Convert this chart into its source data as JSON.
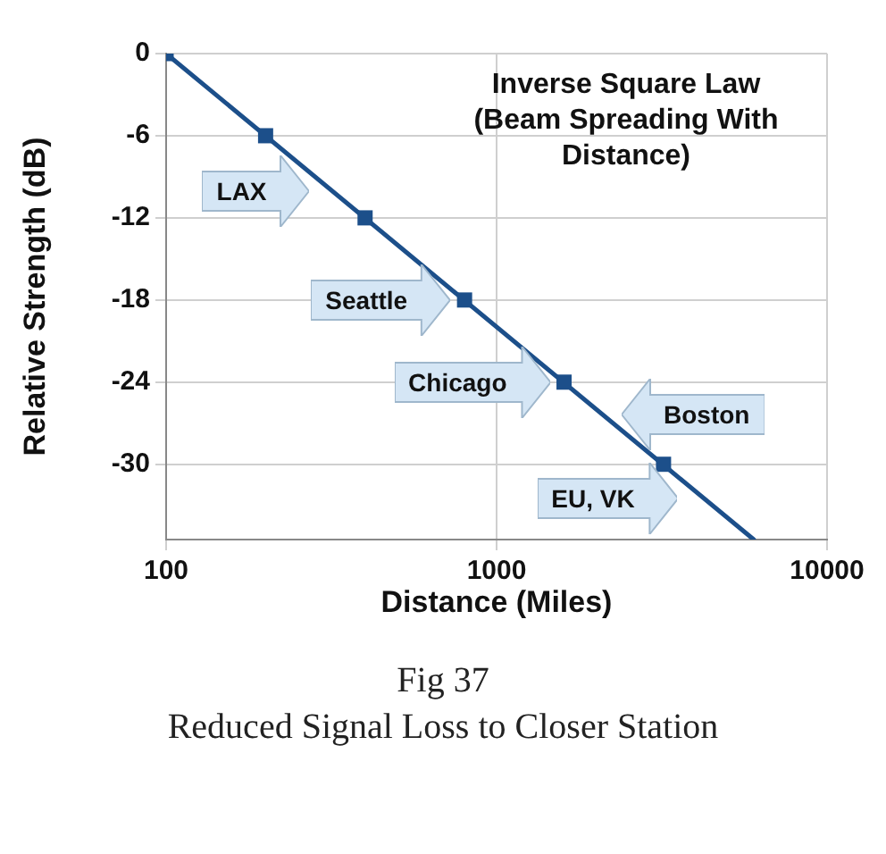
{
  "chart_data": {
    "type": "line",
    "title": "Inverse Square Law (Beam Spreading With Distance)",
    "xlabel": "Distance (Miles)",
    "ylabel": "Relative Strength (dB)",
    "series": [
      {
        "type": "line",
        "marker": "none",
        "color": "#1c4f8a",
        "x": [
          100,
          6000
        ],
        "values": [
          0,
          -35.5
        ]
      },
      {
        "type": "scatter",
        "marker": "square",
        "color": "#1c4f8a",
        "x": [
          100,
          200,
          400,
          800,
          1600,
          3200
        ],
        "values": [
          0,
          -6,
          -12,
          -18,
          -24,
          -30
        ]
      }
    ],
    "log": "x",
    "xlim": [
      100,
      10000
    ],
    "xticks": [
      100,
      1000,
      10000
    ],
    "ylim": [
      -35.5,
      0
    ],
    "yticks": [
      0,
      -6,
      -12,
      -18,
      -24,
      -30
    ],
    "grid": true,
    "annotations": [
      {
        "text": "LAX",
        "x": 300,
        "y": -10
      },
      {
        "text": "Seattle",
        "x": 800,
        "y": -18
      },
      {
        "text": "Chicago",
        "x": 1600,
        "y": -24
      },
      {
        "text": "Boston",
        "x": 2150,
        "y": -26.3
      },
      {
        "text": "EU, VK",
        "x": 3900,
        "y": -32.5
      },
      "Fig 37",
      "Reduced Signal Loss to Closer Station"
    ]
  }
}
